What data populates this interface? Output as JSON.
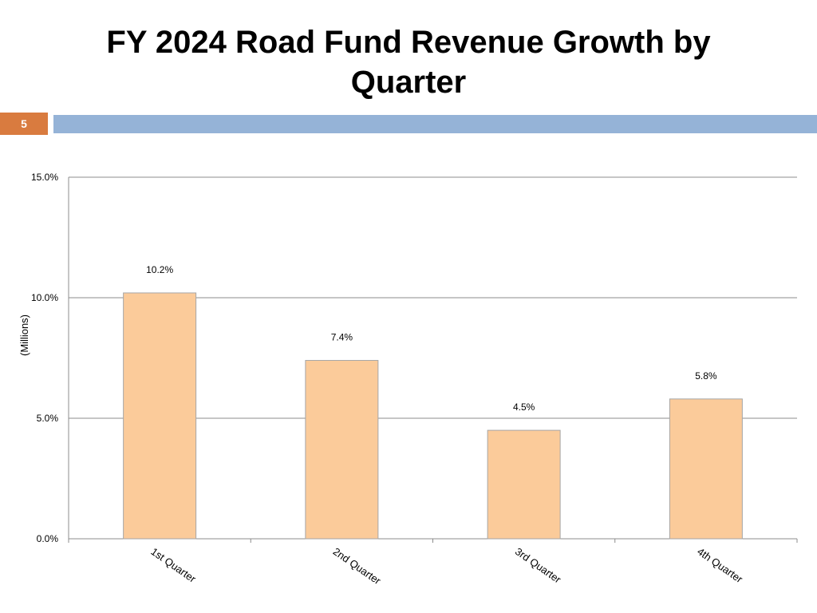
{
  "slide": {
    "title": "FY 2024 Road Fund Revenue Growth by Quarter",
    "number": "5",
    "badge_color": "#D97B3F",
    "bar_color": "#95B3D7"
  },
  "chart_data": {
    "type": "bar",
    "title": "",
    "xlabel": "",
    "ylabel": "(Millions)",
    "categories": [
      "1st Quarter",
      "2nd Quarter",
      "3rd Quarter",
      "4th Quarter"
    ],
    "values": [
      10.2,
      7.4,
      4.5,
      5.8
    ],
    "data_labels": [
      "10.2%",
      "7.4%",
      "4.5%",
      "5.8%"
    ],
    "ylim": [
      0,
      15
    ],
    "yticks": [
      0,
      5,
      10,
      15
    ],
    "ytick_labels": [
      "0.0%",
      "5.0%",
      "10.0%",
      "15.0%"
    ],
    "grid": true,
    "legend": "none",
    "bar_fill": "#FBCB9A",
    "bar_stroke": "#A6A6A6"
  }
}
